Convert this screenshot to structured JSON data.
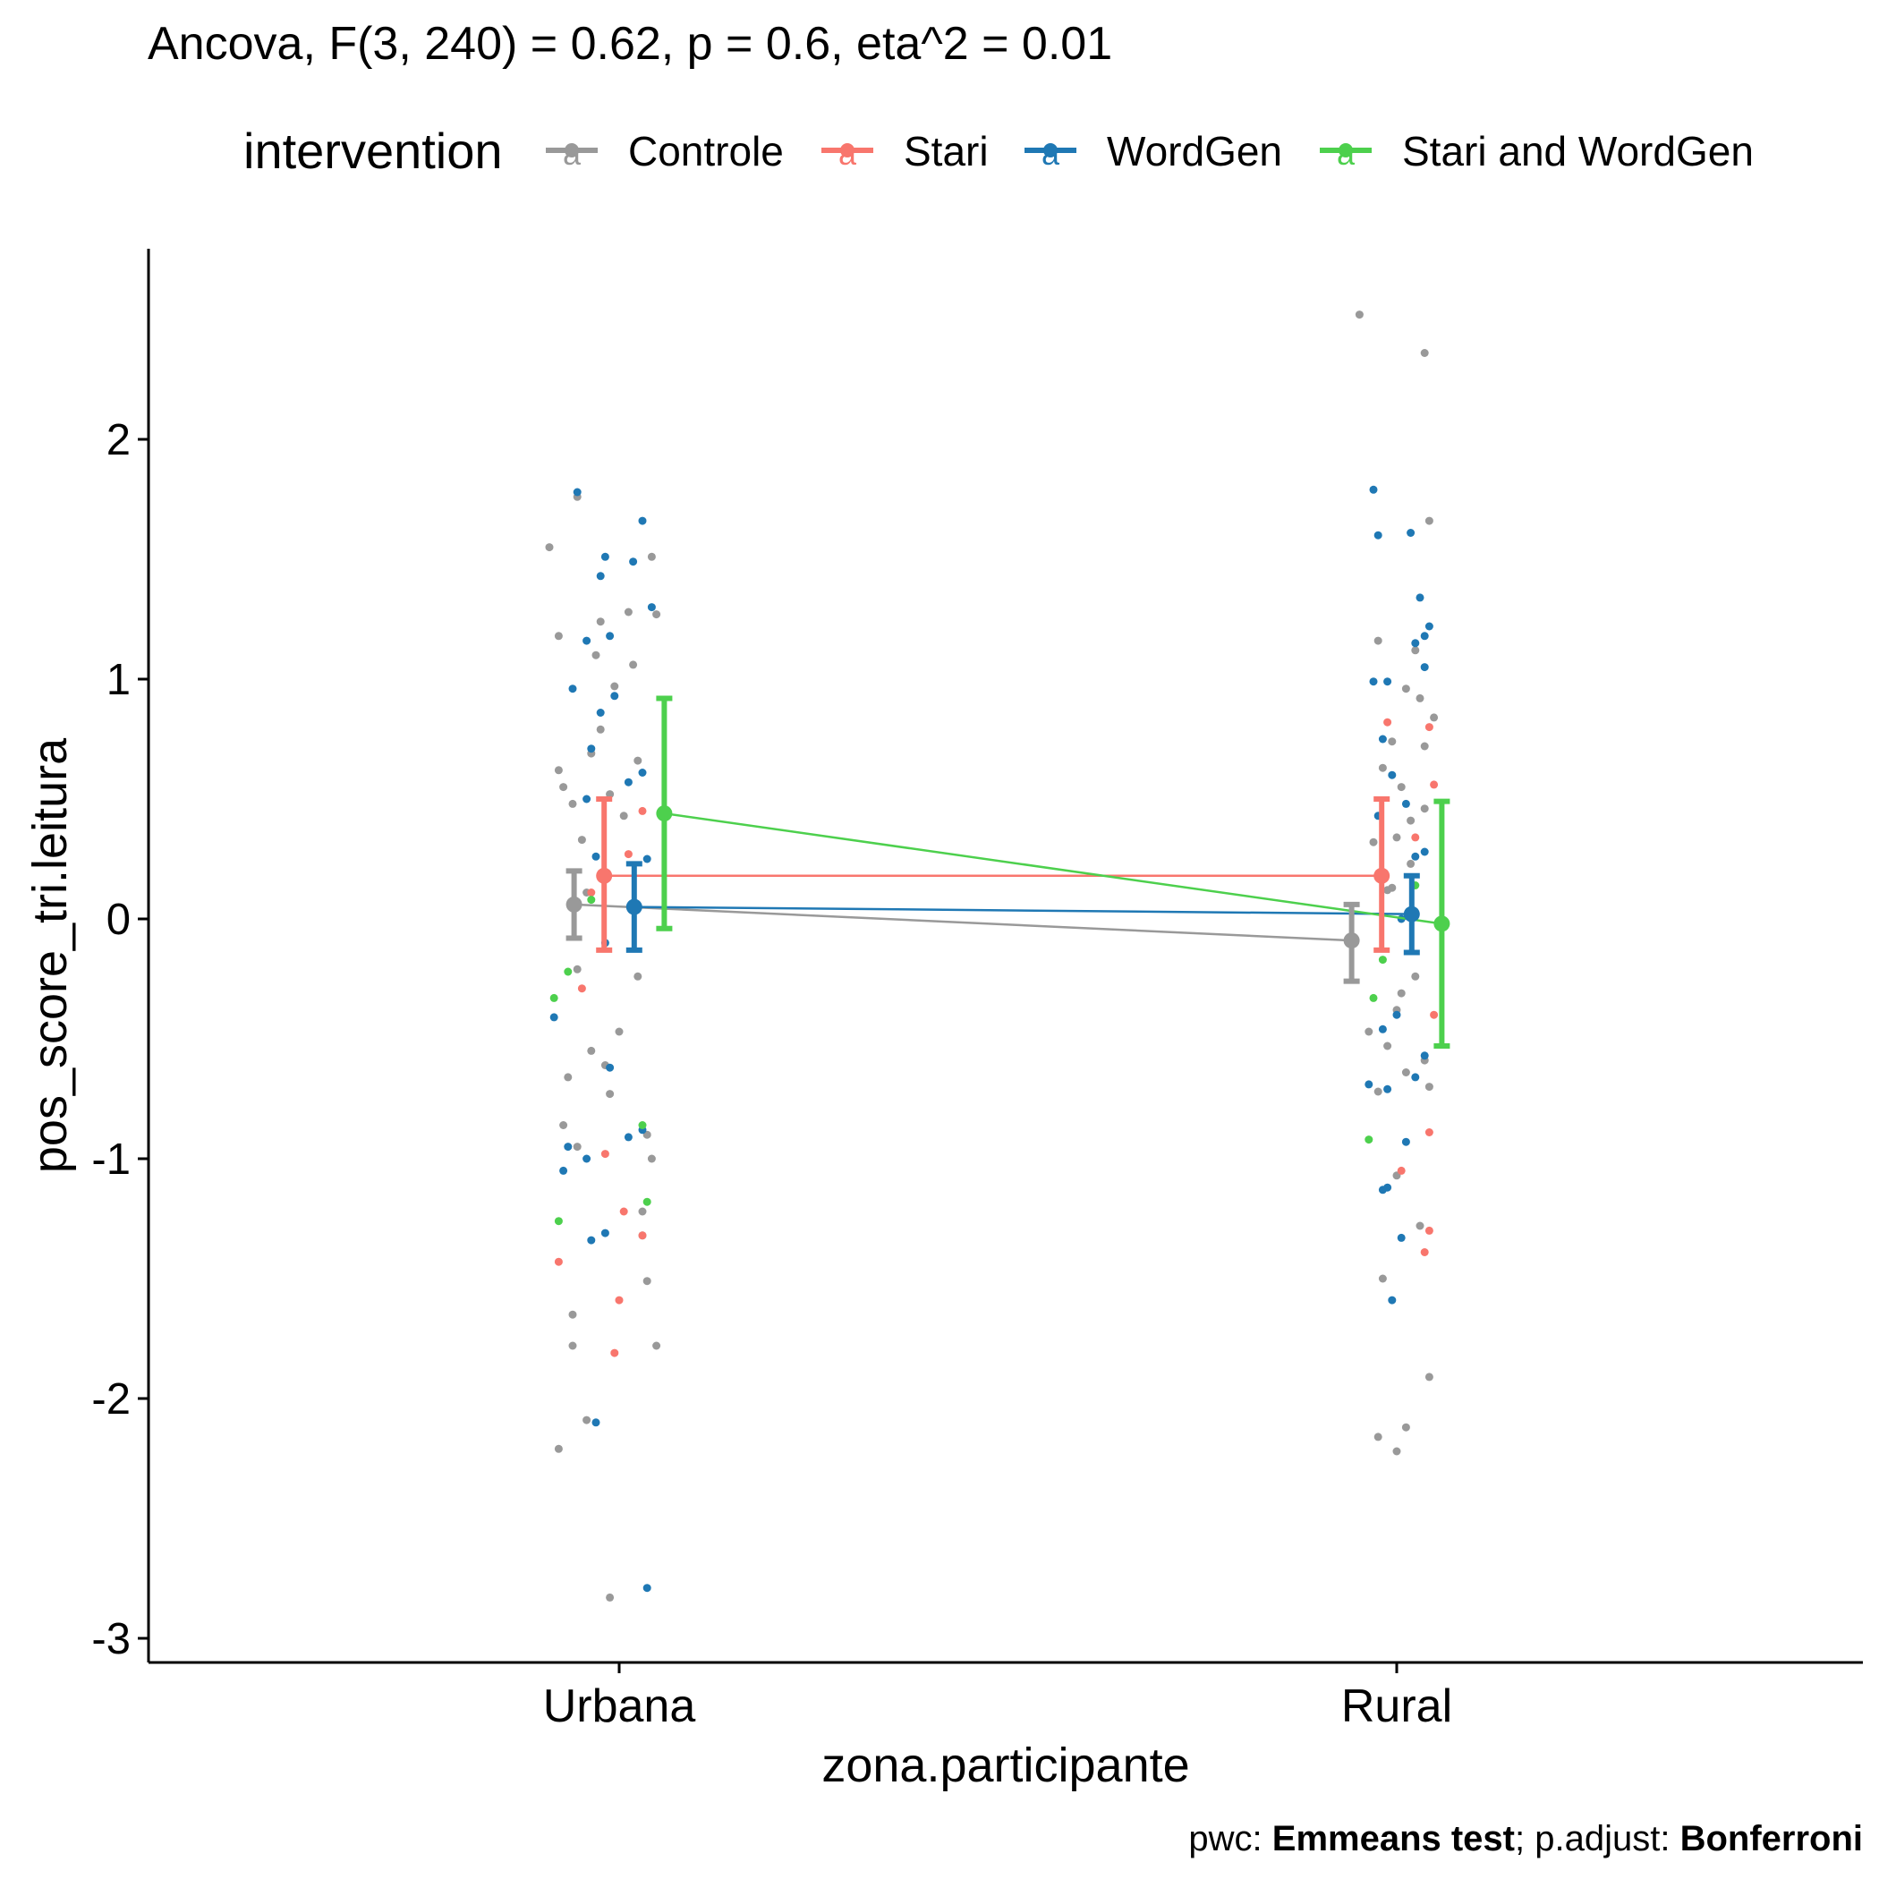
{
  "chart_data": {
    "type": "scatter",
    "title": "Ancova, F(3, 240) = 0.62, p = 0.6, eta^2 = 0.01",
    "xlabel": "zona.participante",
    "ylabel": "pos_score_tri.leitura",
    "categories": [
      "Urbana",
      "Rural"
    ],
    "y_ticks": [
      "-3",
      "-2",
      "-1",
      "0",
      "1",
      "2"
    ],
    "ylim": [
      -3.1,
      2.8
    ],
    "legend": {
      "title": "intervention",
      "position": "top",
      "entries": [
        "Controle",
        "Stari",
        "WordGen",
        "Stari and WordGen"
      ]
    },
    "caption": {
      "parts": [
        {
          "text": "pwc: ",
          "bold": false
        },
        {
          "text": "Emmeans test",
          "bold": true
        },
        {
          "text": "; p.adjust: ",
          "bold": false
        },
        {
          "text": "Bonferroni",
          "bold": true
        }
      ]
    },
    "point_letter": "a",
    "grid": false,
    "series": [
      {
        "name": "Controle",
        "color": "#999999",
        "means": [
          0.06,
          -0.09
        ],
        "ci_low": [
          -0.08,
          -0.26
        ],
        "ci_high": [
          0.2,
          0.06
        ],
        "points": [
          [
            -0.15,
            1.55
          ],
          [
            -0.13,
            1.18
          ],
          [
            -0.09,
            1.76
          ],
          [
            -0.12,
            0.55
          ],
          [
            -0.1,
            0.48
          ],
          [
            -0.08,
            0.33
          ],
          [
            -0.06,
            0.69
          ],
          [
            -0.04,
            0.79
          ],
          [
            -0.02,
            0.52
          ],
          [
            0.01,
            0.43
          ],
          [
            0.03,
            1.06
          ],
          [
            -0.05,
            1.1
          ],
          [
            -0.11,
            -0.66
          ],
          [
            -0.09,
            -0.21
          ],
          [
            -0.06,
            -0.55
          ],
          [
            -0.03,
            -0.61
          ],
          [
            -0.02,
            -0.73
          ],
          [
            0.04,
            -0.24
          ],
          [
            -0.12,
            -0.86
          ],
          [
            -0.1,
            -1.78
          ],
          [
            -0.07,
            -2.09
          ],
          [
            -0.13,
            -2.21
          ],
          [
            -0.02,
            -2.83
          ],
          [
            0.06,
            -1.51
          ],
          [
            0.05,
            -1.32
          ],
          [
            0.07,
            -1.0
          ],
          [
            0.08,
            -1.78
          ],
          [
            0.06,
            -0.9
          ],
          [
            0.02,
            1.28
          ],
          [
            -0.04,
            1.24
          ],
          [
            0.07,
            1.51
          ],
          [
            0.08,
            1.27
          ],
          [
            -0.07,
            0.11
          ],
          [
            -0.09,
            -0.95
          ],
          [
            0.0,
            -0.47
          ],
          [
            -0.13,
            0.62
          ],
          [
            -0.1,
            -1.65
          ],
          [
            0.05,
            -1.22
          ],
          [
            0.04,
            0.66
          ],
          [
            -0.01,
            0.97
          ],
          [
            -0.08,
            2.52
          ],
          [
            -0.04,
            1.16
          ],
          [
            0.04,
            1.12
          ],
          [
            0.07,
            1.66
          ],
          [
            -0.03,
            0.63
          ],
          [
            -0.01,
            0.74
          ],
          [
            0.02,
            0.96
          ],
          [
            0.05,
            0.92
          ],
          [
            0.06,
            0.72
          ],
          [
            0.08,
            0.84
          ],
          [
            -0.05,
            0.32
          ],
          [
            -0.02,
            0.12
          ],
          [
            0.0,
            0.34
          ],
          [
            0.01,
            0.55
          ],
          [
            0.03,
            0.23
          ],
          [
            -0.06,
            -0.47
          ],
          [
            -0.04,
            -0.72
          ],
          [
            -0.02,
            -0.53
          ],
          [
            0.0,
            -0.38
          ],
          [
            0.02,
            -0.64
          ],
          [
            0.04,
            -0.24
          ],
          [
            0.06,
            -0.59
          ],
          [
            0.07,
            -0.7
          ],
          [
            -0.03,
            -1.5
          ],
          [
            0.0,
            -1.07
          ],
          [
            0.02,
            -2.12
          ],
          [
            -0.04,
            -2.16
          ],
          [
            0.0,
            -2.22
          ],
          [
            0.05,
            -1.28
          ],
          [
            0.07,
            -1.91
          ],
          [
            0.03,
            0.41
          ],
          [
            0.06,
            0.46
          ],
          [
            -0.01,
            0.13
          ],
          [
            0.01,
            -0.31
          ],
          [
            0.06,
            2.36
          ]
        ]
      },
      {
        "name": "Stari",
        "color": "#F8766D",
        "means": [
          0.18,
          0.18
        ],
        "ci_low": [
          -0.13,
          -0.13
        ],
        "ci_high": [
          0.5,
          0.5
        ],
        "points": [
          [
            -0.13,
            -1.43
          ],
          [
            -0.08,
            -0.29
          ],
          [
            -0.03,
            -0.98
          ],
          [
            0.0,
            -1.59
          ],
          [
            0.05,
            0.45
          ],
          [
            0.01,
            -1.22
          ],
          [
            -0.06,
            0.11
          ],
          [
            -0.01,
            -1.81
          ],
          [
            0.05,
            -1.32
          ],
          [
            0.02,
            0.27
          ],
          [
            -0.02,
            0.82
          ],
          [
            0.01,
            -1.05
          ],
          [
            0.04,
            0.34
          ],
          [
            0.07,
            0.8
          ],
          [
            0.07,
            -1.3
          ],
          [
            0.06,
            -1.39
          ],
          [
            0.08,
            0.56
          ],
          [
            0.07,
            -0.89
          ],
          [
            0.08,
            -0.4
          ]
        ]
      },
      {
        "name": "WordGen",
        "color": "#1F78B4",
        "means": [
          0.05,
          0.02
        ],
        "ci_low": [
          -0.13,
          -0.14
        ],
        "ci_high": [
          0.23,
          0.18
        ],
        "points": [
          [
            -0.09,
            1.78
          ],
          [
            -0.07,
            1.16
          ],
          [
            -0.03,
            1.51
          ],
          [
            0.03,
            1.49
          ],
          [
            0.05,
            1.66
          ],
          [
            0.07,
            1.3
          ],
          [
            -0.04,
            1.43
          ],
          [
            -0.02,
            1.18
          ],
          [
            -0.1,
            0.96
          ],
          [
            -0.06,
            0.71
          ],
          [
            -0.04,
            0.86
          ],
          [
            -0.01,
            0.93
          ],
          [
            0.05,
            0.61
          ],
          [
            -0.07,
            0.5
          ],
          [
            -0.05,
            0.26
          ],
          [
            0.02,
            0.57
          ],
          [
            0.06,
            0.25
          ],
          [
            -0.14,
            -0.41
          ],
          [
            -0.11,
            -0.95
          ],
          [
            -0.12,
            -1.05
          ],
          [
            -0.07,
            -1.0
          ],
          [
            -0.03,
            -1.31
          ],
          [
            -0.06,
            -1.34
          ],
          [
            -0.02,
            -0.62
          ],
          [
            -0.03,
            -0.1
          ],
          [
            0.02,
            -0.91
          ],
          [
            0.05,
            -0.88
          ],
          [
            -0.05,
            -2.1
          ],
          [
            0.06,
            -2.79
          ],
          [
            -0.05,
            1.79
          ],
          [
            -0.04,
            1.6
          ],
          [
            0.03,
            1.61
          ],
          [
            0.05,
            1.34
          ],
          [
            0.07,
            1.22
          ],
          [
            0.04,
            1.15
          ],
          [
            0.06,
            1.05
          ],
          [
            -0.02,
            0.99
          ],
          [
            -0.05,
            0.99
          ],
          [
            -0.03,
            0.75
          ],
          [
            -0.01,
            0.6
          ],
          [
            0.02,
            0.48
          ],
          [
            0.04,
            0.26
          ],
          [
            0.06,
            0.28
          ],
          [
            -0.04,
            0.43
          ],
          [
            0.01,
            0.0
          ],
          [
            -0.06,
            -0.69
          ],
          [
            -0.02,
            -0.71
          ],
          [
            -0.03,
            -0.46
          ],
          [
            0.0,
            -0.4
          ],
          [
            0.04,
            -0.66
          ],
          [
            0.06,
            -0.57
          ],
          [
            -0.02,
            -1.12
          ],
          [
            -0.03,
            -1.13
          ],
          [
            0.01,
            -1.33
          ],
          [
            -0.01,
            -1.59
          ],
          [
            0.02,
            -0.93
          ],
          [
            0.06,
            1.18
          ]
        ]
      },
      {
        "name": "Stari and WordGen",
        "color": "#4DD04D",
        "means": [
          0.44,
          -0.02
        ],
        "ci_low": [
          -0.04,
          -0.53
        ],
        "ci_high": [
          0.92,
          0.49
        ],
        "points": [
          [
            -0.14,
            -0.33
          ],
          [
            -0.11,
            -0.22
          ],
          [
            -0.13,
            -1.26
          ],
          [
            -0.06,
            0.08
          ],
          [
            0.05,
            -0.86
          ],
          [
            0.06,
            -1.18
          ],
          [
            -0.05,
            -0.33
          ],
          [
            -0.03,
            -0.17
          ],
          [
            -0.06,
            -0.92
          ],
          [
            0.04,
            0.14
          ]
        ]
      }
    ]
  }
}
